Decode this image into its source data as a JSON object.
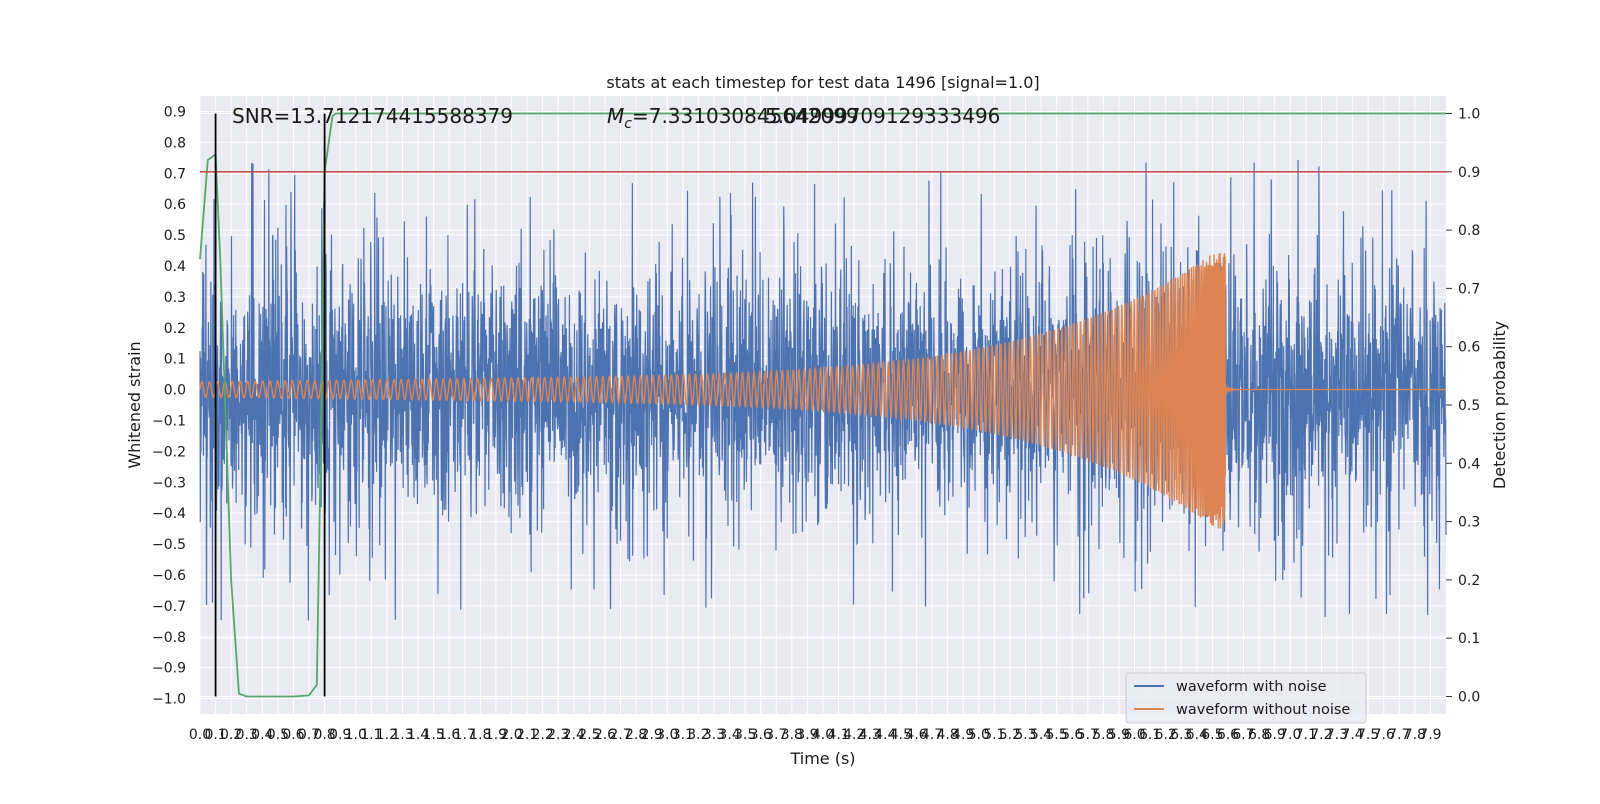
{
  "chart_data": {
    "type": "line",
    "title": "stats at each timestep for test data 1496 [signal=1.0]",
    "xlabel": "Time (s)",
    "ylabel": "Whitened strain",
    "ylabel_right": "Detection probability",
    "xlim": [
      0.0,
      8.0
    ],
    "ylim": [
      -1.05,
      0.95
    ],
    "ylim_right": [
      -0.03,
      1.03
    ],
    "grid": true,
    "legend_position": "lower right",
    "x_ticks": [
      "0.0",
      "0.1",
      "0.2",
      "0.3",
      "0.4",
      "0.5",
      "0.6",
      "0.7",
      "0.8",
      "0.9",
      "1.0",
      "1.1",
      "1.2",
      "1.3",
      "1.4",
      "1.5",
      "1.6",
      "1.7",
      "1.8",
      "1.9",
      "2.0",
      "2.1",
      "2.2",
      "2.3",
      "2.4",
      "2.5",
      "2.6",
      "2.7",
      "2.8",
      "2.9",
      "3.0",
      "3.1",
      "3.2",
      "3.3",
      "3.4",
      "3.5",
      "3.6",
      "3.7",
      "3.8",
      "3.9",
      "4.0",
      "4.1",
      "4.2",
      "4.3",
      "4.4",
      "4.5",
      "4.6",
      "4.7",
      "4.8",
      "4.9",
      "5.0",
      "5.1",
      "5.2",
      "5.3",
      "5.4",
      "5.5",
      "5.6",
      "5.7",
      "5.8",
      "5.9",
      "6.0",
      "6.1",
      "6.2",
      "6.3",
      "6.4",
      "6.5",
      "6.6",
      "6.7",
      "6.8",
      "6.9",
      "7.0",
      "7.1",
      "7.2",
      "7.3",
      "7.4",
      "7.5",
      "7.6",
      "7.7",
      "7.8",
      "7.9"
    ],
    "y_ticks": [
      "0.9",
      "0.8",
      "0.7",
      "0.6",
      "0.5",
      "0.4",
      "0.3",
      "0.2",
      "0.1",
      "0.0",
      "−0.1",
      "−0.2",
      "−0.3",
      "−0.4",
      "−0.5",
      "−0.6",
      "−0.7",
      "−0.8",
      "−0.9",
      "−1.0"
    ],
    "y_tick_values": [
      0.9,
      0.8,
      0.7,
      0.6,
      0.5,
      0.4,
      0.3,
      0.2,
      0.1,
      0.0,
      -0.1,
      -0.2,
      -0.3,
      -0.4,
      -0.5,
      -0.6,
      -0.7,
      -0.8,
      -0.9,
      -1.0
    ],
    "y_right_ticks": [
      "1.0",
      "0.9",
      "0.8",
      "0.7",
      "0.6",
      "0.5",
      "0.4",
      "0.3",
      "0.2",
      "0.1",
      "0.0"
    ],
    "y_right_tick_values": [
      1.0,
      0.9,
      0.8,
      0.7,
      0.6,
      0.5,
      0.4,
      0.3,
      0.2,
      0.1,
      0.0
    ],
    "annotations": {
      "snr": "SNR=13.712174415588379",
      "mc_prefix": "M",
      "mc_sub": "c",
      "mc_value": "=7.331030845642099",
      "overlap": "5.04999709129333496"
    },
    "series": [
      {
        "name": "waveform with noise",
        "color": "#4c72b0",
        "axis": "left",
        "noise_envelope": {
          "core_abs": 0.33,
          "max": 0.9,
          "min": -1.0
        }
      },
      {
        "name": "waveform without noise",
        "color": "#dd8452",
        "axis": "left",
        "chirp": {
          "start_amplitude": 0.025,
          "peak_amplitude": 0.43,
          "min_at_merger": -0.28,
          "merger_time": 6.58,
          "cycles": 215
        }
      },
      {
        "name": "detection probability",
        "color": "#55a868",
        "axis": "right",
        "x": [
          0.0,
          0.05,
          0.1,
          0.13,
          0.2,
          0.25,
          0.3,
          0.4,
          0.6,
          0.7,
          0.75,
          0.78,
          0.8,
          0.85,
          0.87,
          1.0,
          8.0
        ],
        "y": [
          0.75,
          0.92,
          0.93,
          0.75,
          0.2,
          0.005,
          0.0,
          0.0,
          0.0,
          0.002,
          0.02,
          0.5,
          0.9,
          0.995,
          1.0,
          1.0,
          1.0
        ]
      }
    ],
    "threshold_right": 0.9,
    "threshold_color": "#c44e52",
    "vertical_lines_x": [
      0.1,
      0.8
    ],
    "vertical_line_color": "#000000",
    "plot_background": "#eaeaf2",
    "grid_color": "#ffffff"
  }
}
